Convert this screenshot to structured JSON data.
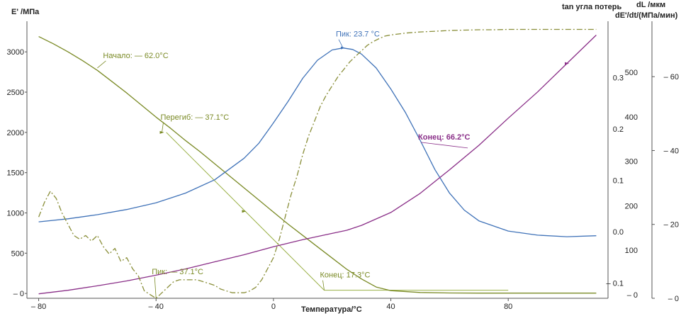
{
  "chart_data": {
    "type": "line",
    "title": "",
    "xlabel": "Температура/°C",
    "xlim": [
      -84,
      114
    ],
    "xticks": [
      -80,
      -40,
      0,
      40,
      80
    ],
    "xtick_labels": [
      "– 80",
      "– 40",
      "0",
      "40",
      "80"
    ],
    "axes": [
      {
        "id": "E",
        "label": "E' /МПа",
        "ylim": [
          -60,
          3380
        ],
        "ticks": [
          0,
          500,
          1000,
          1500,
          2000,
          2500,
          3000
        ],
        "tick_labels": [
          "– 0",
          "500",
          "1000",
          "1500",
          "2000",
          "2500",
          "3000"
        ],
        "side": "left",
        "color": "#222222"
      },
      {
        "id": "tan",
        "label": "tan угла потерь",
        "ylim": [
          -0.13,
          0.41
        ],
        "ticks": [
          -0.1,
          0.0,
          0.1,
          0.2,
          0.3
        ],
        "tick_labels": [
          "– 0.1",
          "0.0",
          "0.1",
          "0.2",
          "0.3"
        ],
        "side": "right",
        "color": "#222222"
      },
      {
        "id": "dL",
        "label": "dL /мкм",
        "ylim": [
          -8,
          615
        ],
        "ticks": [
          0,
          100,
          200,
          300,
          400,
          500
        ],
        "tick_labels": [
          "– 0",
          "100",
          "200",
          "300",
          "400",
          "500"
        ],
        "side": "right",
        "color": "#222222"
      },
      {
        "id": "dEdt",
        "label": "dE'/dt/(МПа/мин)",
        "ylim": [
          0,
          -75
        ],
        "ticks": [
          0,
          -20,
          -40,
          -60
        ],
        "tick_labels": [
          "– 0",
          "– 20",
          "– 40",
          "– 60"
        ],
        "side": "right",
        "color": "#222222"
      }
    ],
    "series": [
      {
        "axis": "E",
        "color": "#7a8a25",
        "dash": "",
        "x": [
          -80,
          -75,
          -70,
          -65,
          -60,
          -55,
          -50,
          -45,
          -40,
          -35,
          -30,
          -25,
          -20,
          -15,
          -10,
          -5,
          0,
          5,
          10,
          15,
          20,
          25,
          30,
          35,
          40,
          50,
          60,
          70,
          80,
          90,
          100,
          110
        ],
        "y": [
          3190,
          3100,
          3000,
          2890,
          2770,
          2630,
          2490,
          2340,
          2190,
          2050,
          1900,
          1760,
          1610,
          1460,
          1310,
          1160,
          1010,
          860,
          720,
          580,
          440,
          300,
          180,
          80,
          35,
          12,
          6,
          4,
          4,
          4,
          4,
          4
        ]
      },
      {
        "axis": "tan",
        "color": "#3f72b8",
        "dash": "",
        "x": [
          -80,
          -70,
          -60,
          -50,
          -40,
          -30,
          -20,
          -10,
          -5,
          0,
          5,
          10,
          15,
          20,
          23.7,
          27,
          30,
          35,
          40,
          45,
          50,
          55,
          60,
          65,
          70,
          80,
          90,
          100,
          110
        ],
        "y": [
          0.019,
          0.025,
          0.033,
          0.043,
          0.056,
          0.075,
          0.101,
          0.143,
          0.172,
          0.212,
          0.254,
          0.299,
          0.334,
          0.354,
          0.358,
          0.355,
          0.346,
          0.319,
          0.278,
          0.232,
          0.178,
          0.121,
          0.075,
          0.042,
          0.021,
          0.001,
          -0.007,
          -0.01,
          -0.008
        ]
      },
      {
        "axis": "dL",
        "color": "#8a2f88",
        "dash": "",
        "x": [
          -80,
          -70,
          -60,
          -50,
          -40,
          -30,
          -20,
          -10,
          0,
          10,
          20,
          25,
          30,
          40,
          50,
          60,
          70,
          80,
          90,
          100,
          110
        ],
        "y": [
          2,
          10,
          20,
          31,
          44,
          58,
          74,
          90,
          108,
          124,
          138,
          145,
          156,
          185,
          228,
          281,
          336,
          397,
          456,
          520,
          584
        ]
      },
      {
        "axis": "dEdt",
        "color": "#8a8f3a",
        "dash": "8,3,2,3",
        "x": [
          -80,
          -78,
          -76,
          -74,
          -72,
          -70,
          -68,
          -66,
          -64,
          -62,
          -60,
          -58,
          -56,
          -54,
          -52,
          -50,
          -48,
          -46,
          -44,
          -42,
          -40,
          -38,
          -36,
          -34,
          -32,
          -30,
          -28,
          -26,
          -24,
          -22,
          -20,
          -18,
          -16,
          -14,
          -12,
          -10,
          -8,
          -6,
          -4,
          -2,
          0,
          2,
          4,
          6,
          8,
          10,
          12,
          14,
          16,
          18,
          20,
          22,
          24,
          26,
          28,
          30,
          32,
          34,
          36,
          38,
          40,
          45,
          50,
          55,
          60,
          65,
          70,
          75,
          80,
          90,
          100,
          110
        ],
        "y": [
          -22,
          -26,
          -29,
          -27,
          -23,
          -20,
          -17,
          -16,
          -17,
          -15.5,
          -17,
          -14,
          -12,
          -13.5,
          -10,
          -11,
          -8,
          -6,
          -2,
          -1,
          0,
          -1.5,
          -3,
          -4.5,
          -5,
          -5,
          -5,
          -5,
          -4.5,
          -4,
          -3.5,
          -2.5,
          -2,
          -1.5,
          -1.5,
          -1.5,
          -2,
          -3,
          -5,
          -8,
          -11,
          -16,
          -22,
          -28,
          -33,
          -39,
          -44,
          -48,
          -52,
          -55,
          -57.5,
          -60,
          -62,
          -64,
          -65.5,
          -67,
          -68.5,
          -69.5,
          -70.3,
          -71,
          -71.3,
          -71.8,
          -72.1,
          -72.3,
          -72.5,
          -72.6,
          -72.7,
          -72.7,
          -72.8,
          -72.8,
          -72.8,
          -72.8
        ]
      }
    ],
    "construction_lines": [
      {
        "axis": "E",
        "color": "#9ab046",
        "x": [
          -36.5,
          17.3
        ],
        "y": [
          2000,
          40
        ]
      },
      {
        "axis": "E",
        "color": "#9ab046",
        "x": [
          17.3,
          80
        ],
        "y": [
          40,
          40
        ]
      }
    ],
    "markers": [
      {
        "axis": "E",
        "x": -38,
        "y": 2000,
        "color": "#7a8a25"
      },
      {
        "axis": "E",
        "x": -10,
        "y": 1020,
        "color": "#7a8a25"
      },
      {
        "axis": "tan",
        "x": 23.7,
        "y": 0.358,
        "color": "#3f72b8"
      },
      {
        "axis": "dL",
        "x": 100,
        "y": 520,
        "color": "#8a2f88"
      }
    ],
    "annotations": [
      {
        "text": "Начало: — 62.0°C",
        "color": "#7a8a25",
        "bold": false,
        "axis": "E",
        "ax": -60,
        "ay": 2800
      },
      {
        "text": "Перегиб: — 37.1°C",
        "color": "#7a8a25",
        "bold": false,
        "axis": "E",
        "ax": -38,
        "ay": 2000
      },
      {
        "text": "Пик: 23.7 °C",
        "color": "#3f72b8",
        "bold": false,
        "axis": "tan",
        "ax": 23.7,
        "ay": 0.358
      },
      {
        "text": "Конец: 66.2°C",
        "color": "#8a2f88",
        "bold": true,
        "axis": "dL",
        "ax": 66.2,
        "ay": 330
      },
      {
        "text": "Пик: — 37.1°C",
        "color": "#7a8a25",
        "bold": false,
        "axis": "dEdt",
        "ax": -40,
        "ay": 0
      },
      {
        "text": "Конец: 17.3°C",
        "color": "#7a8a25",
        "bold": false,
        "axis": "E",
        "ax": 17.3,
        "ay": 40
      }
    ]
  }
}
